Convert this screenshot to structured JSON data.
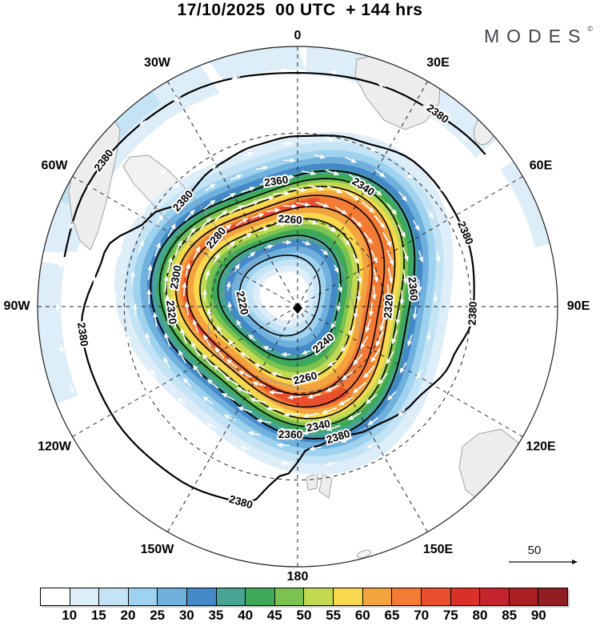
{
  "title": "17/10/2025  00 UTC  + 144 hrs",
  "logo": {
    "text": "MODES",
    "superscript": "©"
  },
  "map": {
    "direction_labels": [
      {
        "label": "0",
        "az": 0
      },
      {
        "label": "30E",
        "az": 30
      },
      {
        "label": "60E",
        "az": 60
      },
      {
        "label": "90E",
        "az": 90
      },
      {
        "label": "120E",
        "az": 120
      },
      {
        "label": "150E",
        "az": 150
      },
      {
        "label": "180",
        "az": 180
      },
      {
        "label": "150W",
        "az": 210
      },
      {
        "label": "120W",
        "az": 240
      },
      {
        "label": "90W",
        "az": 270
      },
      {
        "label": "60W",
        "az": 300
      },
      {
        "label": "30W",
        "az": 330
      }
    ],
    "contour_levels": [
      "2220",
      "2240",
      "2260",
      "2280",
      "2300",
      "2320",
      "2340",
      "2360",
      "2380"
    ],
    "reference_vector_label": "50"
  },
  "colorbar": {
    "ticks": [
      "10",
      "15",
      "20",
      "25",
      "30",
      "35",
      "40",
      "45",
      "50",
      "55",
      "60",
      "65",
      "70",
      "75",
      "80",
      "85",
      "90"
    ],
    "colors": [
      "#ffffff",
      "#ddeef9",
      "#c4e3f5",
      "#9ed2ee",
      "#6fb0dd",
      "#4489c8",
      "#47a493",
      "#3ea958",
      "#7cc250",
      "#c2da52",
      "#f8d84e",
      "#f4a43f",
      "#f47b34",
      "#e94f2c",
      "#d93127",
      "#c4242b",
      "#ab2023",
      "#8f1d21"
    ]
  },
  "chart_data": {
    "type": "contour_map",
    "title": "17/10/2025 00 UTC + 144 hrs",
    "projection": "south polar stereographic",
    "longitude_labels": [
      "0",
      "30E",
      "60E",
      "90E",
      "120E",
      "150E",
      "180",
      "150W",
      "120W",
      "90W",
      "60W",
      "30W"
    ],
    "contour_levels": [
      2220,
      2240,
      2260,
      2280,
      2300,
      2320,
      2340,
      2360,
      2380
    ],
    "shading_levels": [
      10,
      15,
      20,
      25,
      30,
      35,
      40,
      45,
      50,
      55,
      60,
      65,
      70,
      75,
      80,
      85,
      90
    ],
    "reference_vector": 50,
    "legend_position": "bottom"
  }
}
